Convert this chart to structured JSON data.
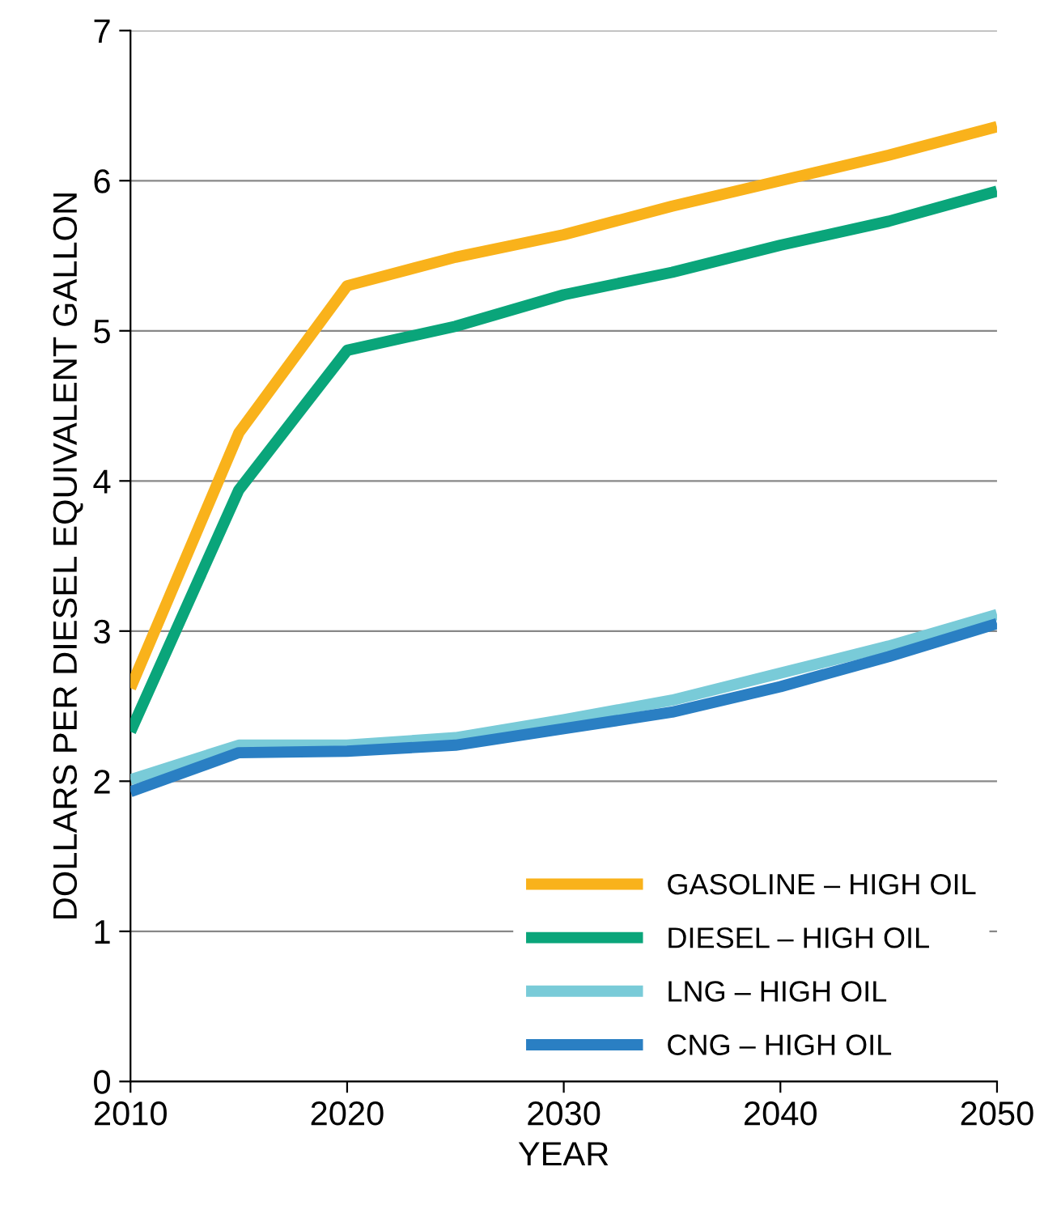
{
  "chart_data": {
    "type": "line",
    "xlabel": "YEAR",
    "ylabel": "DOLLARS PER DIESEL EQUIVALENT GALLON",
    "x": [
      2010,
      2015,
      2020,
      2025,
      2030,
      2035,
      2040,
      2045,
      2050
    ],
    "series": [
      {
        "name": "GASOLINE – HIGH OIL",
        "color": "#f9b21b",
        "values": [
          2.62,
          4.32,
          5.3,
          5.49,
          5.64,
          5.83,
          6.0,
          6.17,
          6.36
        ]
      },
      {
        "name": "DIESEL – HIGH OIL",
        "color": "#0aa57a",
        "values": [
          2.33,
          3.94,
          4.87,
          5.03,
          5.24,
          5.39,
          5.57,
          5.73,
          5.93
        ]
      },
      {
        "name": "LNG – HIGH OIL",
        "color": "#79cbd8",
        "values": [
          2.01,
          2.24,
          2.24,
          2.29,
          2.41,
          2.54,
          2.72,
          2.9,
          3.11
        ]
      },
      {
        "name": "CNG – HIGH OIL",
        "color": "#2a7fc3",
        "values": [
          1.93,
          2.19,
          2.2,
          2.24,
          2.35,
          2.46,
          2.63,
          2.83,
          3.05
        ]
      }
    ],
    "xlim": [
      2010,
      2050
    ],
    "xticks": [
      2010,
      2020,
      2030,
      2040,
      2050
    ],
    "ylim": [
      0,
      7
    ],
    "yticks": [
      0,
      1,
      2,
      3,
      4,
      5,
      6,
      7
    ],
    "grid": "y",
    "legend": "bottom right",
    "marker": "none",
    "line_style": "solid"
  }
}
